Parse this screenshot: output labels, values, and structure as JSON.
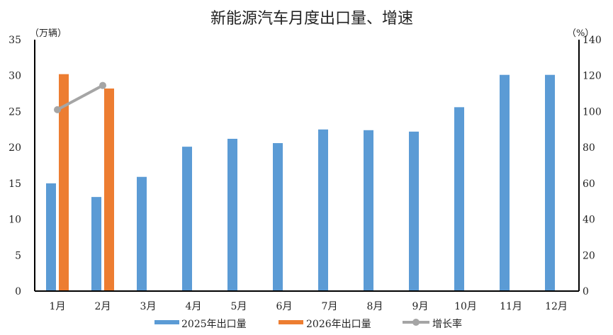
{
  "chart_data": {
    "type": "bar",
    "title": "新能源汽车月度出口量、增速",
    "ylabel_left": "（万辆）",
    "ylabel_right": "（%）",
    "ylim_left": [
      0,
      35
    ],
    "ylim_right": [
      0,
      140
    ],
    "yticks_left": [
      0,
      5,
      10,
      15,
      20,
      25,
      30,
      35
    ],
    "yticks_right": [
      0,
      20,
      40,
      60,
      80,
      100,
      120,
      140
    ],
    "categories": [
      "1月",
      "2月",
      "3月",
      "4月",
      "5月",
      "6月",
      "7月",
      "8月",
      "9月",
      "10月",
      "11月",
      "12月"
    ],
    "series": [
      {
        "name": "2025年出口量",
        "type": "bar",
        "axis": "left",
        "color": "#5B9BD5",
        "values": [
          15.0,
          13.1,
          15.9,
          20.1,
          21.2,
          20.6,
          22.5,
          22.4,
          22.2,
          25.6,
          30.1,
          30.1
        ]
      },
      {
        "name": "2026年出口量",
        "type": "bar",
        "axis": "left",
        "color": "#ED7D31",
        "values": [
          30.2,
          28.2,
          null,
          null,
          null,
          null,
          null,
          null,
          null,
          null,
          null,
          null
        ]
      },
      {
        "name": "增长率",
        "type": "line",
        "axis": "right",
        "color": "#A5A5A5",
        "values": [
          101,
          114.5,
          null,
          null,
          null,
          null,
          null,
          null,
          null,
          null,
          null,
          null
        ]
      }
    ],
    "legend": "bottom",
    "grid": false
  }
}
